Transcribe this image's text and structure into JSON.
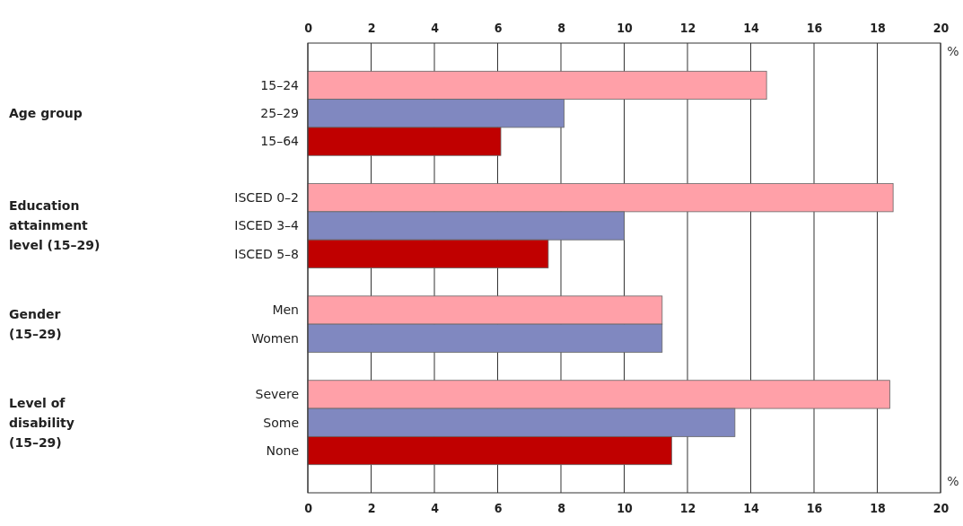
{
  "chart_data": {
    "type": "bar",
    "orientation": "horizontal",
    "categories": [
      "15–24",
      "25–29",
      "15–64",
      null,
      "ISCED 0–2",
      "ISCED 3–4",
      "ISCED 5–8",
      null,
      "Men",
      "Women",
      null,
      "Severe",
      "Some",
      "None"
    ],
    "values": [
      14.5,
      8.1,
      6.1,
      null,
      18.5,
      10.0,
      7.6,
      null,
      11.2,
      11.2,
      null,
      18.4,
      13.5,
      11.5
    ],
    "colors": [
      "#ffa0a8",
      "#8088c0",
      "#c00000",
      null,
      "#ffa0a8",
      "#8088c0",
      "#c00000",
      null,
      "#ffa0a8",
      "#8088c0",
      null,
      "#ffa0a8",
      "#8088c0",
      "#c00000"
    ],
    "xlim": [
      0,
      20
    ],
    "xticks": [
      0,
      2,
      4,
      6,
      8,
      10,
      12,
      14,
      16,
      18,
      20
    ],
    "x2lim": [
      0,
      20
    ],
    "x2ticks": [
      0,
      2,
      4,
      6,
      8,
      10,
      12,
      14,
      16,
      18,
      20
    ],
    "xlabel": "%",
    "x2label": "%",
    "annotations": [
      "Age group",
      "Education attainment level (15–29)",
      "Gender (15–29)",
      "Level of disability (15–29)"
    ],
    "grid": "x"
  }
}
